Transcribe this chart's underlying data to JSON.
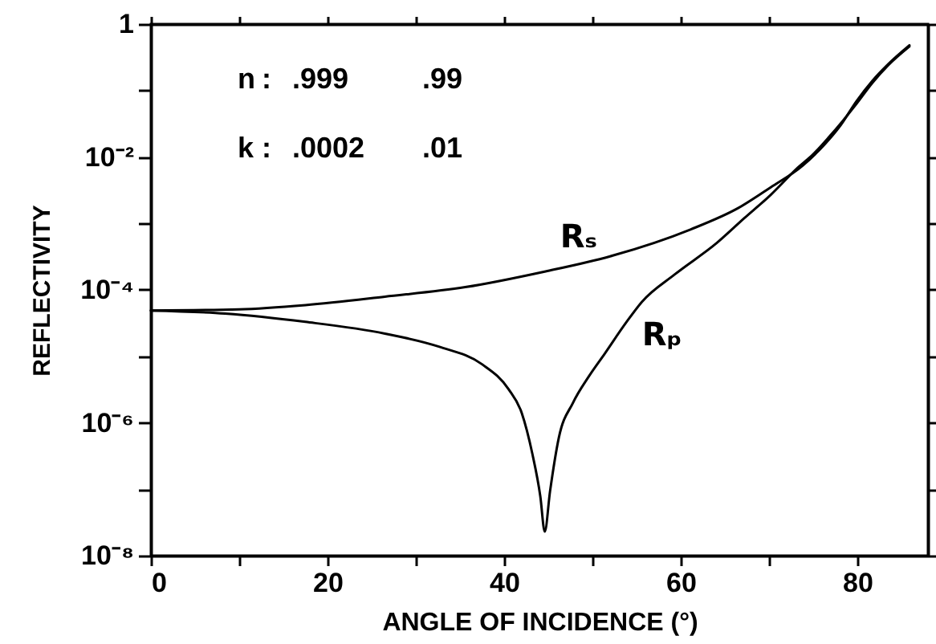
{
  "chart_data": {
    "type": "line",
    "xlabel": "ANGLE OF INCIDENCE (°)",
    "ylabel": "REFLECTIVITY",
    "annotations": [
      "n : .999 .99",
      "k : .0002 .01"
    ],
    "log": true,
    "xlim": [
      0,
      88
    ],
    "ylim": [
      1e-08,
      1
    ],
    "xticks": [
      0,
      {
        "value": 10,
        "label": null
      },
      20,
      {
        "value": 30,
        "label": null
      },
      40,
      {
        "value": 50,
        "label": null
      },
      60,
      {
        "value": 70,
        "label": null
      },
      80
    ],
    "yticks": [
      {
        "value": 1e-08,
        "label": "10⁻⁸"
      },
      {
        "value": 1e-07,
        "label": null
      },
      {
        "value": 1e-06,
        "label": "10⁻⁶"
      },
      {
        "value": 1e-05,
        "label": null
      },
      {
        "value": 0.0001,
        "label": "10⁻⁴"
      },
      {
        "value": 0.001,
        "label": null
      },
      {
        "value": 0.01,
        "label": "10⁻²"
      },
      {
        "value": 0.1,
        "label": null
      },
      1
    ],
    "series": [
      {
        "name": "Rₛ",
        "color": "#000000",
        "x": [
          0,
          10,
          17.5,
          26.5,
          35.6,
          44.7,
          52,
          61.1,
          66.5,
          70.2,
          73.8,
          76.2,
          78.1,
          79.9,
          81.7,
          83.5,
          85.9
        ],
        "values": [
          4.9e-05,
          5.1e-05,
          5.9e-05,
          7.9e-05,
          0.00011,
          0.00019,
          0.00032,
          0.00081,
          0.0017,
          0.0035,
          0.0074,
          0.015,
          0.03,
          0.069,
          0.14,
          0.25,
          0.48
        ]
      },
      {
        "name": "Rₚ",
        "color": "#000000",
        "x": [
          0,
          8.4,
          17.5,
          26.5,
          32.6,
          37.5,
          40.5,
          42,
          43.2,
          44.1,
          44.6,
          45.2,
          46.2,
          47.8,
          49.6,
          51.4,
          53.8,
          55.6,
          59.3,
          64.1,
          67.2,
          70.2,
          73.2,
          75,
          76.8,
          79.9,
          81.7,
          83.5,
          85.9
        ],
        "values": [
          4.9e-05,
          4.4e-05,
          3.3e-05,
          2.2e-05,
          1.4e-05,
          7.6e-06,
          3.2e-06,
          1.4e-06,
          3.4e-07,
          7.8e-08,
          2.3e-08,
          9.3e-08,
          6e-07,
          2e-06,
          5e-06,
          1.1e-05,
          3.2e-05,
          6.6e-05,
          0.00017,
          0.00051,
          0.0012,
          0.0027,
          0.0068,
          0.011,
          0.02,
          0.063,
          0.13,
          0.24,
          0.46
        ]
      }
    ]
  }
}
